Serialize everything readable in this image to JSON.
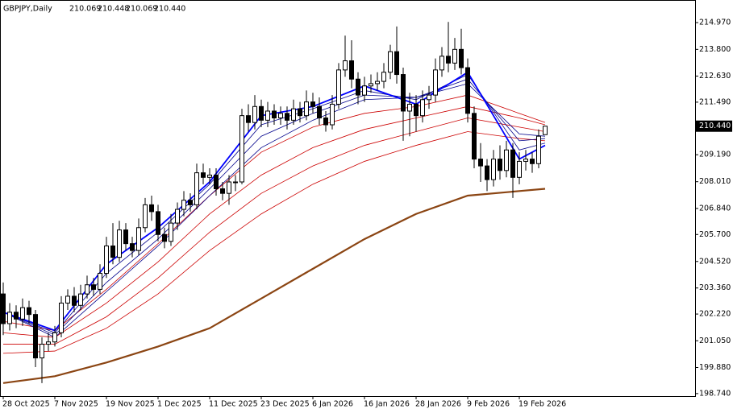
{
  "chart_data": {
    "type": "candlestick",
    "title": "GBPJPY,Daily",
    "header_ohlc": [
      "210.069",
      "210.448",
      "210.069",
      "210.440"
    ],
    "categories": [
      "28 Oct 2025",
      null,
      null,
      null,
      null,
      null,
      null,
      null,
      "7 Nov 2025",
      null,
      null,
      null,
      null,
      null,
      null,
      null,
      "19 Nov 2025",
      null,
      null,
      null,
      null,
      null,
      null,
      null,
      "1 Dec 2025",
      null,
      null,
      null,
      null,
      null,
      null,
      null,
      "11 Dec 2025",
      null,
      null,
      null,
      null,
      null,
      null,
      null,
      "23 Dec 2025",
      null,
      null,
      null,
      null,
      null,
      null,
      null,
      "6 Jan 2026",
      null,
      null,
      null,
      null,
      null,
      null,
      null,
      "16 Jan 2026",
      null,
      null,
      null,
      null,
      null,
      null,
      null,
      "28 Jan 2026",
      null,
      null,
      null,
      null,
      null,
      null,
      null,
      "9 Feb 2026",
      null,
      null,
      null,
      null,
      null,
      null,
      null,
      "19 Feb 2026",
      null,
      null,
      null,
      null
    ],
    "open": [
      203.1,
      201.8,
      202.3,
      202.0,
      202.5,
      202.2,
      200.3,
      200.9,
      201.0,
      201.4,
      202.7,
      203.0,
      202.6,
      203.1,
      203.5,
      203.3,
      204.0,
      205.2,
      204.7,
      205.9,
      205.3,
      205.0,
      206.0,
      207.0,
      206.7,
      205.7,
      205.4,
      206.2,
      206.8,
      207.2,
      207.0,
      208.4,
      208.2,
      208.3,
      207.7,
      207.5,
      208.0,
      208.0,
      210.9,
      210.6,
      211.3,
      210.7,
      211.1,
      210.8,
      211.0,
      210.7,
      211.2,
      210.9,
      211.5,
      211.3,
      210.8,
      210.5,
      211.4,
      212.9,
      213.3,
      212.5,
      211.8,
      212.2,
      212.3,
      212.4,
      212.8,
      213.7,
      212.7,
      211.1,
      211.4,
      210.9,
      211.6,
      211.8,
      212.9,
      213.5,
      213.2,
      213.8,
      213.0,
      211.0,
      209.0,
      208.7,
      208.1,
      209.0,
      208.5,
      209.4,
      208.2,
      208.9,
      209.0,
      208.8,
      210.069
    ],
    "high": [
      203.6,
      202.7,
      202.6,
      202.9,
      202.8,
      202.4,
      201.2,
      201.4,
      201.7,
      203.0,
      203.3,
      203.4,
      203.5,
      203.9,
      203.8,
      204.4,
      205.6,
      206.2,
      206.3,
      206.2,
      205.6,
      206.4,
      207.3,
      207.4,
      207.0,
      206.0,
      206.6,
      207.1,
      207.6,
      207.5,
      208.8,
      208.8,
      208.6,
      208.6,
      208.0,
      208.3,
      208.3,
      211.2,
      211.4,
      211.8,
      211.6,
      211.5,
      211.4,
      211.3,
      211.3,
      211.6,
      211.5,
      212.0,
      211.9,
      211.7,
      211.1,
      211.8,
      213.2,
      214.4,
      214.2,
      212.8,
      212.6,
      212.7,
      212.8,
      213.2,
      214.0,
      214.8,
      213.0,
      211.9,
      211.8,
      212.0,
      212.2,
      213.4,
      213.9,
      215.0,
      214.3,
      214.7,
      213.4,
      211.3,
      209.7,
      209.0,
      209.4,
      209.6,
      209.8,
      209.7,
      209.3,
      209.4,
      209.3,
      210.3,
      210.448
    ],
    "low": [
      201.3,
      201.5,
      201.6,
      201.7,
      201.8,
      199.9,
      199.2,
      200.6,
      200.8,
      201.2,
      202.4,
      202.3,
      202.4,
      202.9,
      203.0,
      203.1,
      203.8,
      204.4,
      204.5,
      205.0,
      204.7,
      204.8,
      205.8,
      206.3,
      205.4,
      205.1,
      205.2,
      205.9,
      206.5,
      206.7,
      206.8,
      207.9,
      207.9,
      207.4,
      207.2,
      207.0,
      207.6,
      207.9,
      210.2,
      210.3,
      210.4,
      210.4,
      210.5,
      210.5,
      210.3,
      210.5,
      210.6,
      210.7,
      211.0,
      210.5,
      210.2,
      210.3,
      211.2,
      212.6,
      212.1,
      211.4,
      211.5,
      211.9,
      212.0,
      212.1,
      212.5,
      212.3,
      209.8,
      210.0,
      210.2,
      210.6,
      211.2,
      211.5,
      212.6,
      212.8,
      212.9,
      212.7,
      210.6,
      208.6,
      208.0,
      207.6,
      207.8,
      208.1,
      208.2,
      207.3,
      207.9,
      208.5,
      208.4,
      208.6,
      210.069
    ],
    "close": [
      201.8,
      202.3,
      202.0,
      202.5,
      202.2,
      200.3,
      200.9,
      201.0,
      201.4,
      202.7,
      203.0,
      202.6,
      203.1,
      203.5,
      203.3,
      204.0,
      205.2,
      204.7,
      205.9,
      205.3,
      205.0,
      206.0,
      207.0,
      206.7,
      205.7,
      205.4,
      206.2,
      206.8,
      207.2,
      207.0,
      208.4,
      208.2,
      208.3,
      207.7,
      207.5,
      208.0,
      208.0,
      210.9,
      210.6,
      211.3,
      210.7,
      211.1,
      210.8,
      211.0,
      210.7,
      211.2,
      210.9,
      211.5,
      211.3,
      210.8,
      210.5,
      211.4,
      212.9,
      213.3,
      212.5,
      211.8,
      212.2,
      212.3,
      212.4,
      212.8,
      213.7,
      212.7,
      211.1,
      211.4,
      210.9,
      211.6,
      211.8,
      212.9,
      213.5,
      213.2,
      213.8,
      213.0,
      211.0,
      209.0,
      208.7,
      208.1,
      209.0,
      208.5,
      209.4,
      208.2,
      208.9,
      209.0,
      208.8,
      210.0,
      210.44
    ],
    "indicators": {
      "x": [
        0,
        8,
        16,
        24,
        32,
        40,
        48,
        56,
        64,
        72,
        80,
        84
      ],
      "lines": [
        {
          "color": "#8b4513",
          "width": 2.2,
          "values": [
            199.2,
            199.5,
            200.1,
            200.8,
            201.6,
            202.9,
            204.2,
            205.5,
            206.6,
            207.4,
            207.6,
            207.7
          ]
        },
        {
          "color": "#cc0000",
          "width": 0.8,
          "values": [
            200.5,
            200.6,
            201.6,
            203.1,
            205.0,
            206.6,
            207.9,
            208.9,
            209.6,
            210.2,
            209.9,
            209.8
          ]
        },
        {
          "color": "#cc0000",
          "width": 0.8,
          "values": [
            200.9,
            200.9,
            202.1,
            203.8,
            205.8,
            207.5,
            208.7,
            209.6,
            210.2,
            210.8,
            210.4,
            210.2
          ]
        },
        {
          "color": "#cc0000",
          "width": 0.8,
          "values": [
            201.4,
            201.2,
            202.7,
            204.5,
            206.6,
            208.3,
            209.5,
            210.3,
            210.8,
            211.3,
            210.8,
            210.5
          ]
        },
        {
          "color": "#cc0000",
          "width": 0.8,
          "values": [
            201.9,
            201.5,
            203.3,
            205.3,
            207.4,
            209.3,
            210.4,
            211.0,
            211.3,
            211.8,
            211.0,
            210.6
          ]
        },
        {
          "color": "#00008b",
          "width": 0.8,
          "values": [
            202.3,
            201.2,
            203.2,
            205.2,
            207.4,
            209.5,
            210.7,
            211.6,
            211.7,
            212.3,
            210.1,
            210.0
          ]
        },
        {
          "color": "#00008b",
          "width": 0.8,
          "values": [
            202.3,
            201.3,
            203.6,
            205.5,
            207.7,
            210.0,
            211.0,
            211.8,
            211.7,
            212.5,
            209.8,
            209.9
          ]
        },
        {
          "color": "#00008b",
          "width": 0.8,
          "values": [
            202.3,
            201.4,
            204.0,
            205.8,
            207.9,
            210.5,
            211.2,
            212.0,
            211.6,
            212.7,
            209.4,
            209.7
          ]
        },
        {
          "color": "#0000ff",
          "width": 1.8,
          "values": [
            202.3,
            201.5,
            204.4,
            206.0,
            208.0,
            210.9,
            211.3,
            212.2,
            211.4,
            212.8,
            209.0,
            209.6
          ]
        }
      ]
    },
    "ylim": [
      198.63,
      215.96
    ],
    "yticks": [
      {
        "value": 214.97,
        "label": "214.970"
      },
      {
        "value": 213.8,
        "label": "213.800"
      },
      {
        "value": 212.63,
        "label": "212.630"
      },
      {
        "value": 211.49,
        "label": "211.490"
      },
      {
        "value": 209.19,
        "label": "209.190"
      },
      {
        "value": 208.01,
        "label": "208.010"
      },
      {
        "value": 206.84,
        "label": "206.840"
      },
      {
        "value": 205.7,
        "label": "205.700"
      },
      {
        "value": 204.52,
        "label": "204.520"
      },
      {
        "value": 203.36,
        "label": "203.360"
      },
      {
        "value": 202.22,
        "label": "202.220"
      },
      {
        "value": 201.05,
        "label": "201.050"
      },
      {
        "value": 199.88,
        "label": "199.880"
      },
      {
        "value": 198.74,
        "label": "198.740"
      }
    ],
    "current_price": {
      "value": 210.44,
      "label": "210.440"
    }
  }
}
